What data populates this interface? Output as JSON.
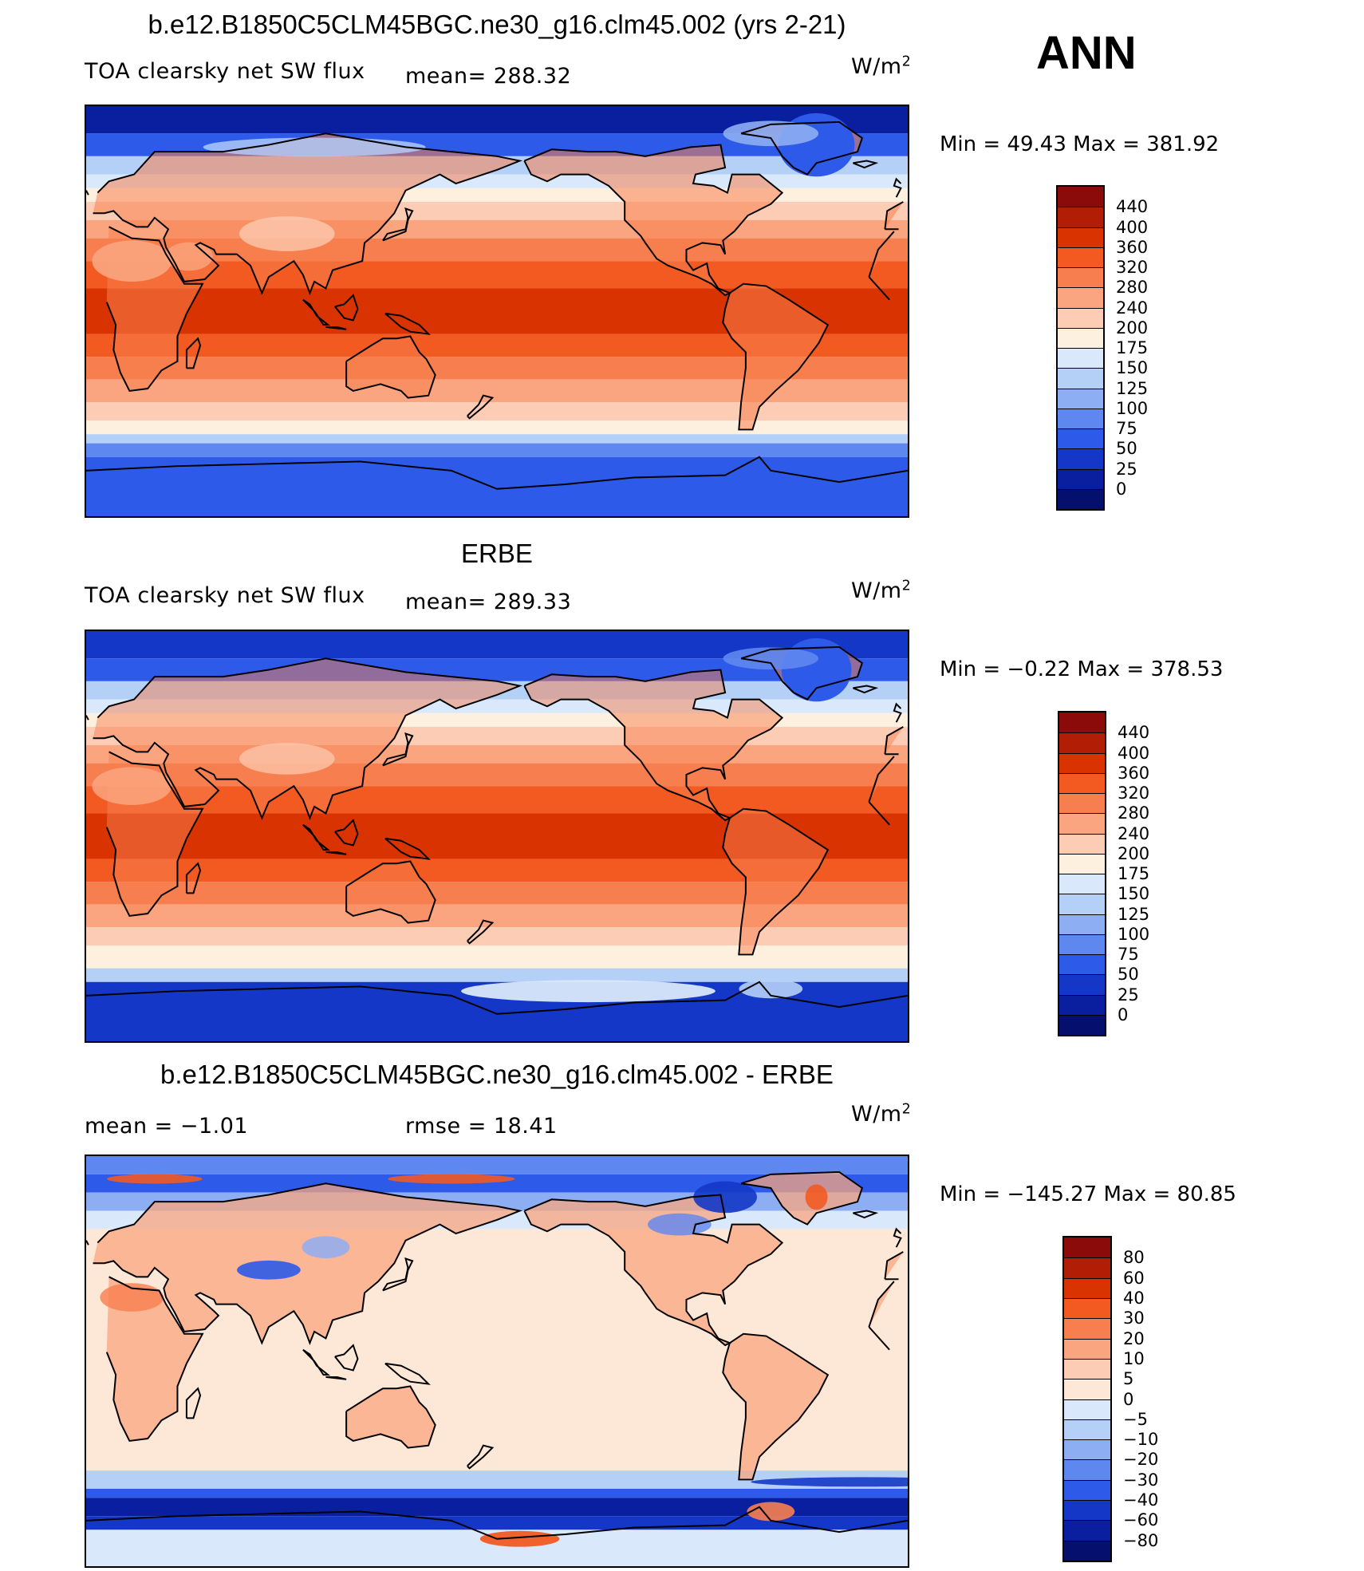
{
  "season": "ANN",
  "units_label": "W/m",
  "units_sup": "2",
  "panels": [
    {
      "id": "model",
      "title": "b.e12.B1850C5CLM45BGC.ne30_g16.clm45.002 (yrs 2-21)",
      "left_label": "TOA clearsky net SW flux",
      "mean_text": "mean=  288.32",
      "stats": "Min =   49.43  Max  =  381.92",
      "colorbar": {
        "labels": [
          "440",
          "400",
          "360",
          "320",
          "280",
          "240",
          "200",
          "175",
          "150",
          "125",
          "100",
          "75",
          "50",
          "25",
          "0"
        ],
        "colors": [
          "#8b0a0a",
          "#b21d05",
          "#d93302",
          "#f25a22",
          "#f77f4f",
          "#faa57f",
          "#fdccb4",
          "#fef0df",
          "#d9e8fb",
          "#b5d0f7",
          "#8eaef3",
          "#5f87f0",
          "#2d5ae8",
          "#1437c7",
          "#0a1fa0",
          "#050f6e"
        ]
      }
    },
    {
      "id": "obs",
      "title": "ERBE",
      "left_label": "TOA clearsky net SW flux",
      "mean_text": "mean=  289.33",
      "stats": "Min =   −0.22  Max  =  378.53",
      "colorbar": {
        "labels": [
          "440",
          "400",
          "360",
          "320",
          "280",
          "240",
          "200",
          "175",
          "150",
          "125",
          "100",
          "75",
          "50",
          "25",
          "0"
        ],
        "colors": [
          "#8b0a0a",
          "#b21d05",
          "#d93302",
          "#f25a22",
          "#f77f4f",
          "#faa57f",
          "#fdccb4",
          "#fef0df",
          "#d9e8fb",
          "#b5d0f7",
          "#8eaef3",
          "#5f87f0",
          "#2d5ae8",
          "#1437c7",
          "#0a1fa0",
          "#050f6e"
        ]
      }
    },
    {
      "id": "diff",
      "title": "b.e12.B1850C5CLM45BGC.ne30_g16.clm45.002 - ERBE",
      "mean_text": "mean =    −1.01",
      "rmse_text": "rmse  =    18.41",
      "stats": "Min  =  −145.27  Max  =    80.85",
      "colorbar": {
        "labels": [
          "80",
          "60",
          "40",
          "30",
          "20",
          "10",
          "5",
          "0",
          "−5",
          "−10",
          "−20",
          "−30",
          "−40",
          "−60",
          "−80"
        ],
        "colors": [
          "#8b0a0a",
          "#b21d05",
          "#d93302",
          "#f25a22",
          "#f77f4f",
          "#faa57f",
          "#fdccb4",
          "#fde7d6",
          "#d9e8fb",
          "#b5d0f7",
          "#8eaef3",
          "#5f87f0",
          "#2d5ae8",
          "#1437c7",
          "#0a1fa0",
          "#050f6e"
        ]
      }
    }
  ]
}
